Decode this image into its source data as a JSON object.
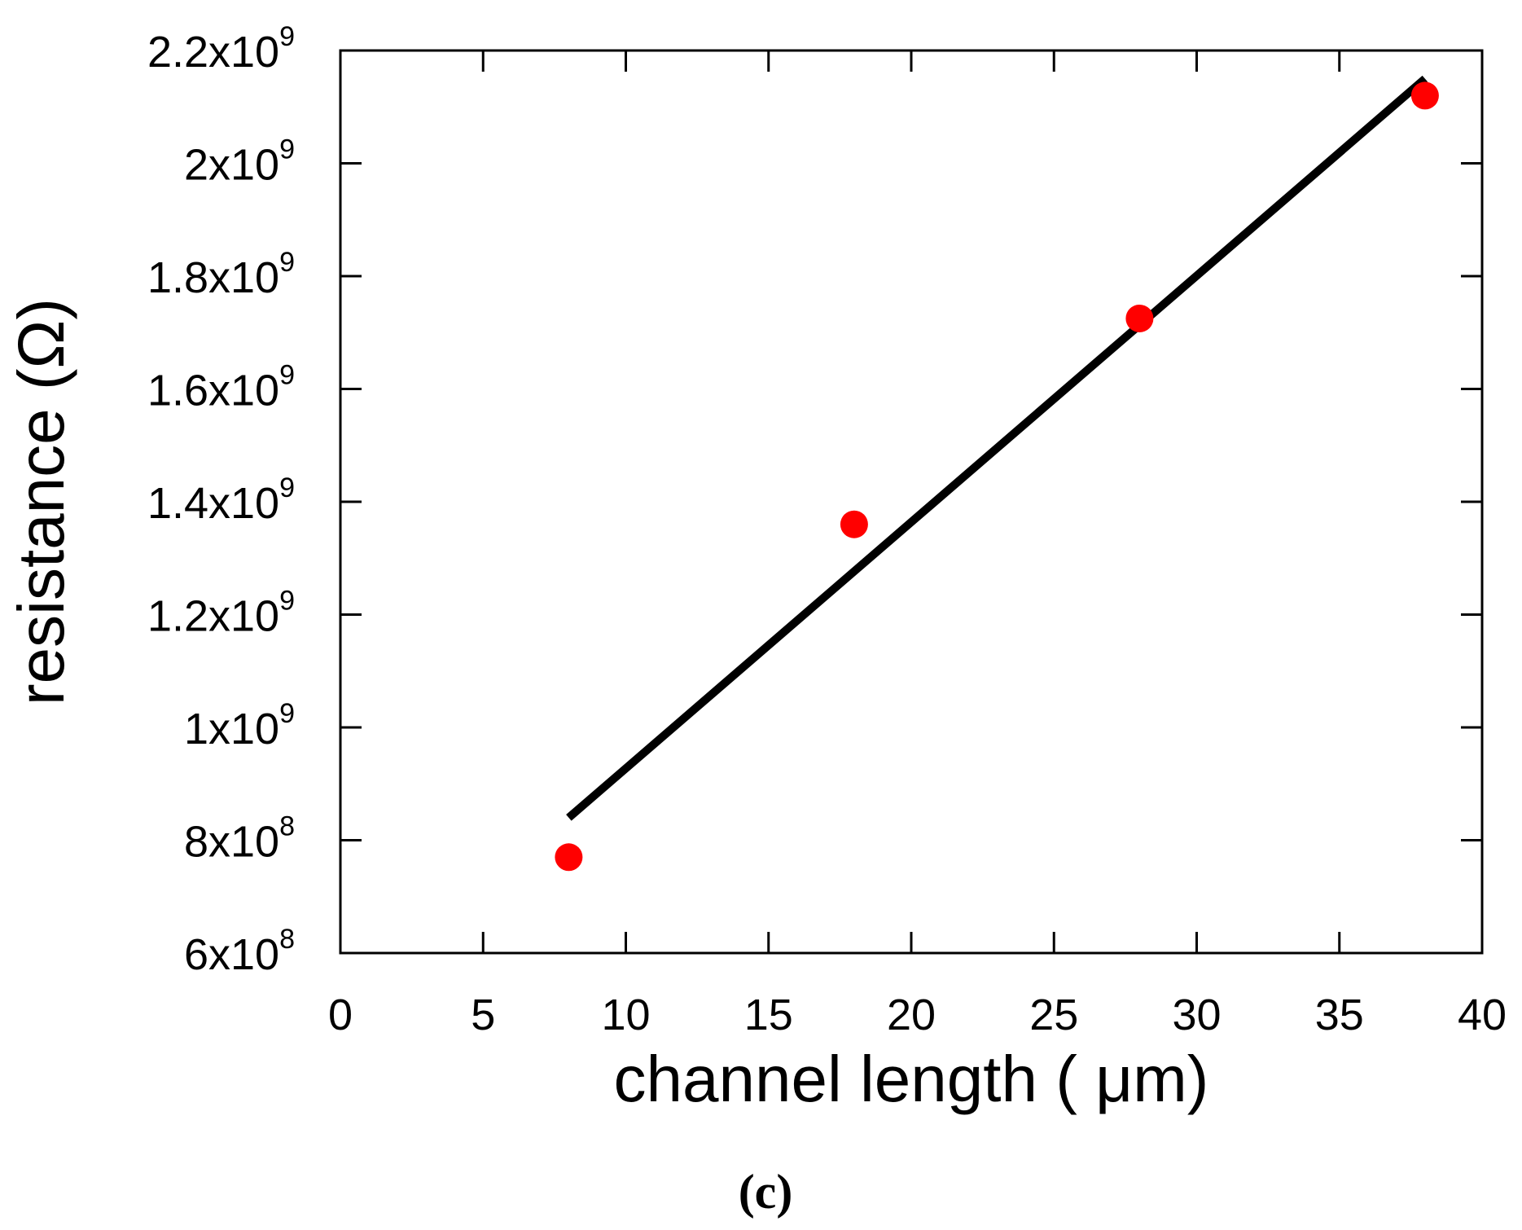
{
  "chart_data": {
    "type": "scatter",
    "xlabel": "channel length ( μm)",
    "ylabel": "resistance (Ω)",
    "xlim": [
      0,
      40
    ],
    "ylim": [
      600000000,
      2200000000
    ],
    "x_ticks": [
      "0",
      "5",
      "10",
      "15",
      "20",
      "25",
      "30",
      "35",
      "40"
    ],
    "y_ticks": [
      {
        "value": 600000000,
        "mantissa": "6x10",
        "exponent": "8"
      },
      {
        "value": 800000000,
        "mantissa": "8x10",
        "exponent": "8"
      },
      {
        "value": 1000000000,
        "mantissa": "1x10",
        "exponent": "9"
      },
      {
        "value": 1200000000,
        "mantissa": "1.2x10",
        "exponent": "9"
      },
      {
        "value": 1400000000,
        "mantissa": "1.4x10",
        "exponent": "9"
      },
      {
        "value": 1600000000,
        "mantissa": "1.6x10",
        "exponent": "9"
      },
      {
        "value": 1800000000,
        "mantissa": "1.8x10",
        "exponent": "9"
      },
      {
        "value": 2000000000,
        "mantissa": "2x10",
        "exponent": "9"
      },
      {
        "value": 2200000000,
        "mantissa": "2.2x10",
        "exponent": "9"
      }
    ],
    "series": [
      {
        "type": "scatter",
        "color": "#ff0000",
        "x": [
          8,
          18,
          28,
          38
        ],
        "y": [
          770000000,
          1360000000,
          1725000000,
          2120000000
        ]
      },
      {
        "type": "line",
        "color": "#000000",
        "x": [
          8,
          38
        ],
        "y": [
          840000000,
          2150000000
        ]
      }
    ],
    "grid": false,
    "caption": "(c)"
  }
}
